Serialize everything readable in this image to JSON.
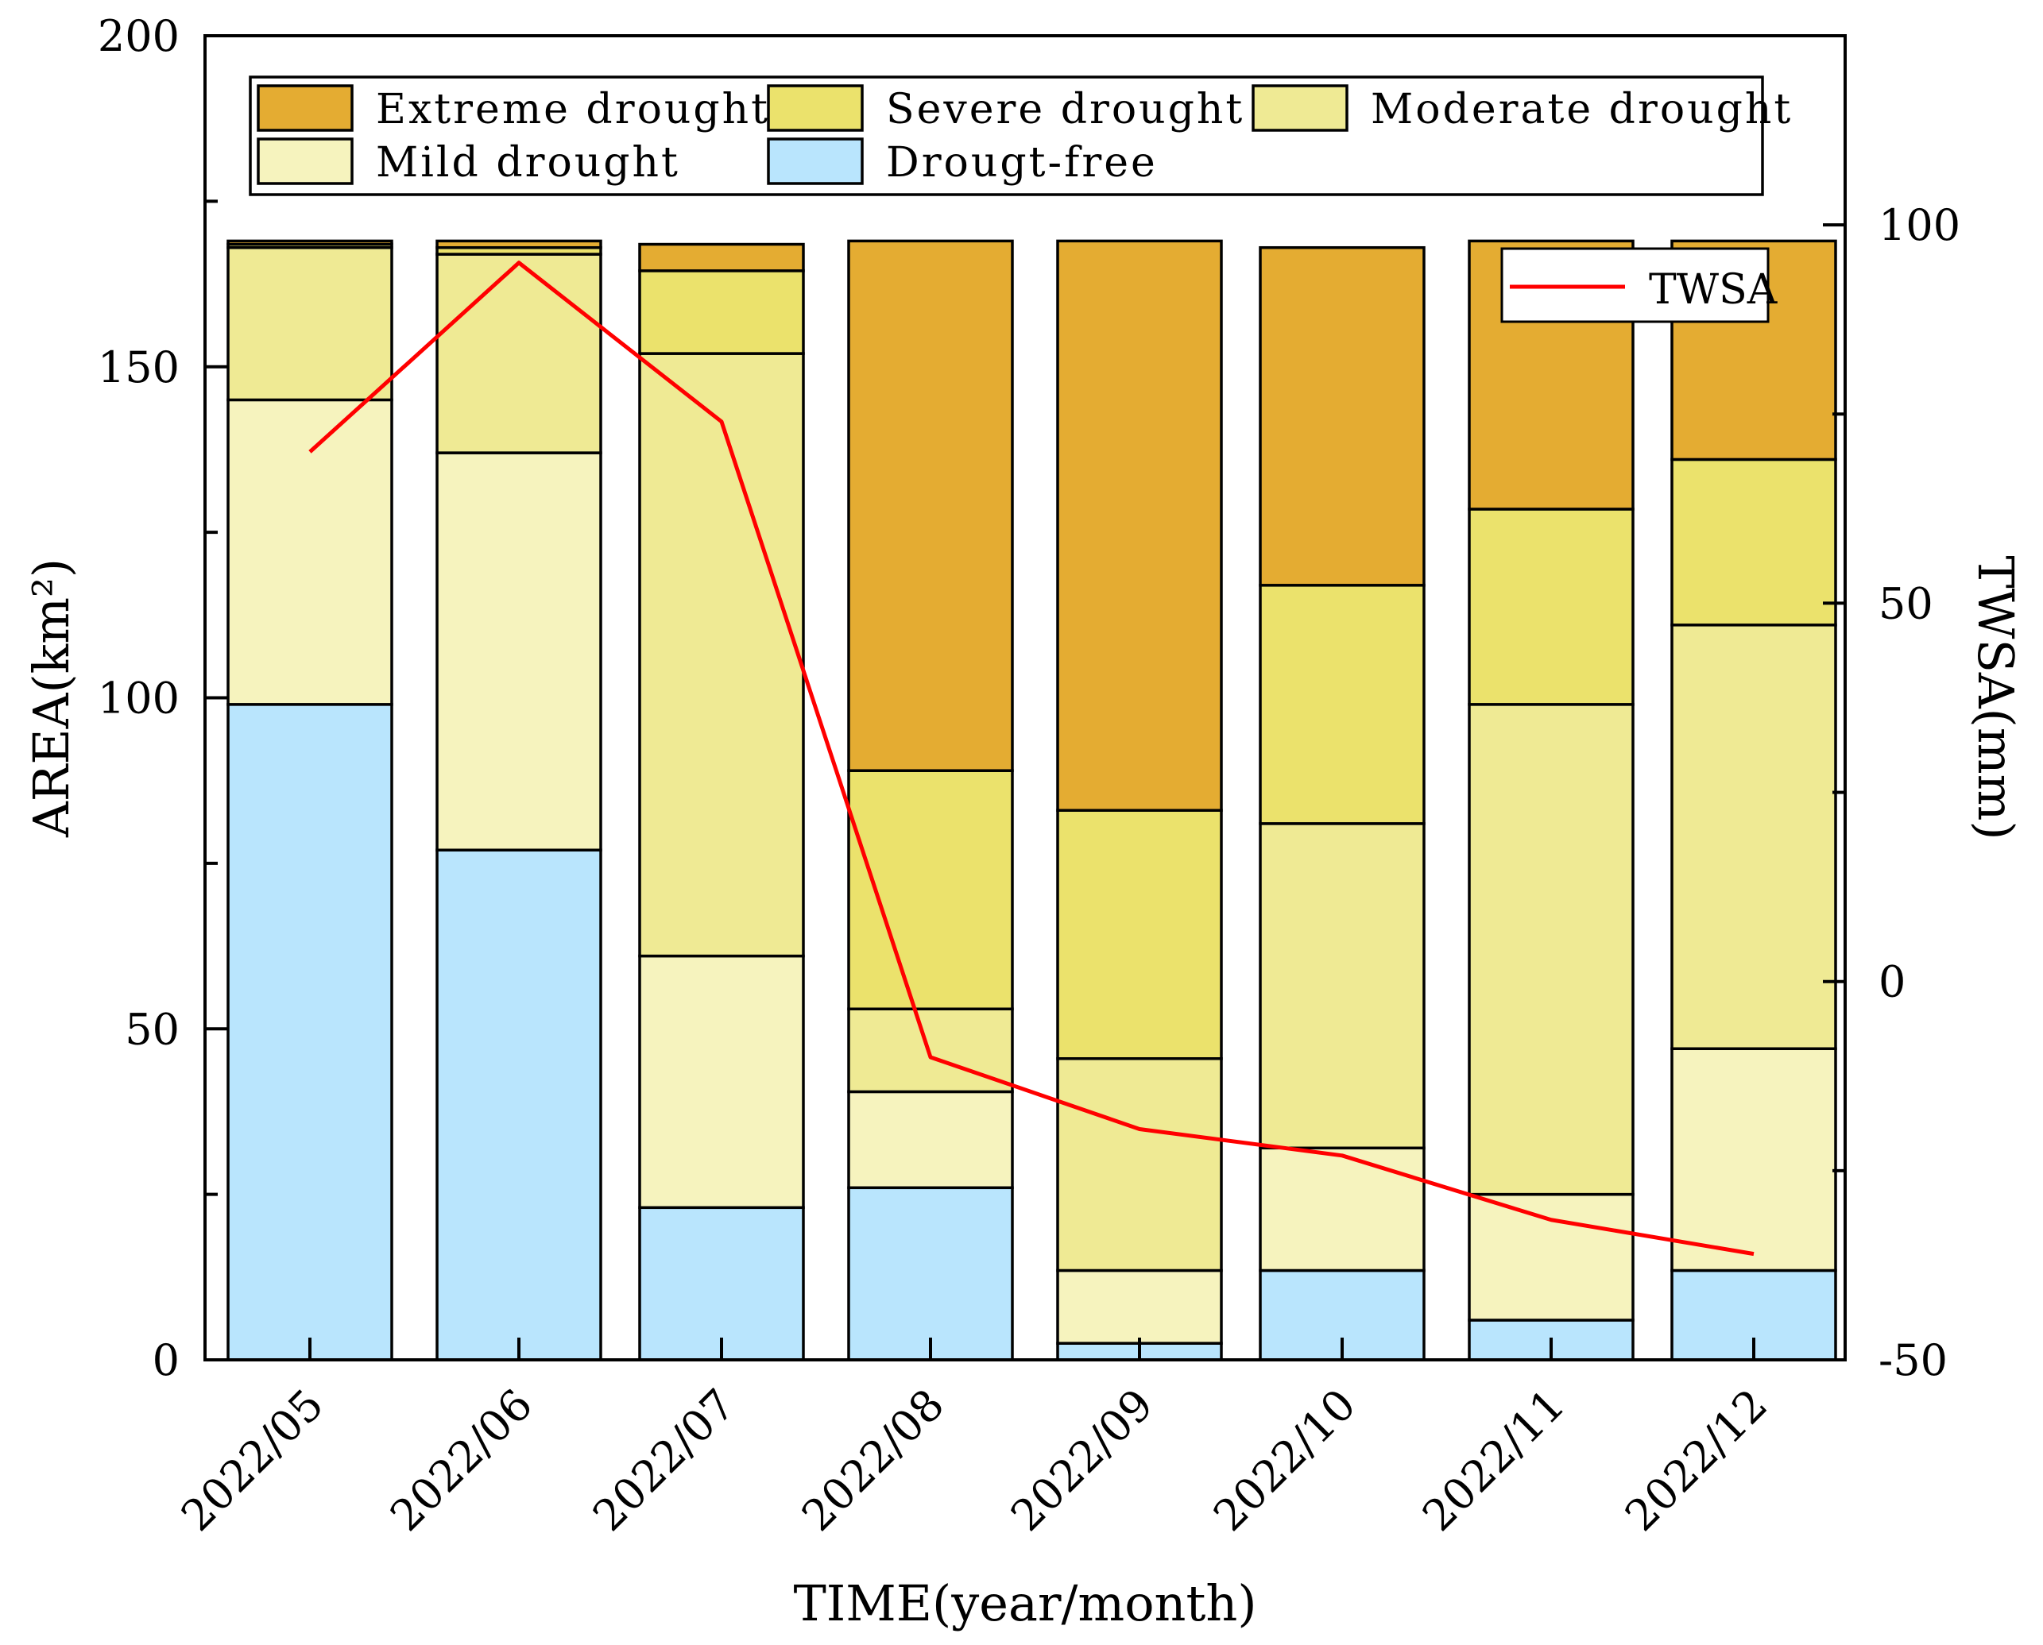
{
  "chart_data": {
    "type": "bar",
    "stacked": true,
    "categories": [
      "2022/05",
      "2022/06",
      "2022/07",
      "2022/08",
      "2022/09",
      "2022/10",
      "2022/11",
      "2022/12"
    ],
    "xlabel": "TIME(year/month)",
    "ylabel": "AREA(km²)",
    "y2label": "TWSA(mm)",
    "ylim": [
      0,
      200
    ],
    "y2lim": [
      -50,
      125
    ],
    "yticks": [
      "0",
      "50",
      "100",
      "150",
      "200"
    ],
    "y2ticks": [
      "-50",
      "0",
      "50",
      "100"
    ],
    "series": [
      {
        "name": "Drougt-free",
        "color": "#B9E5FD",
        "values": [
          99,
          77,
          23,
          26,
          2.5,
          13.5,
          6,
          13.5
        ]
      },
      {
        "name": "Mild drought",
        "color": "#F6F3BE",
        "values": [
          46,
          60,
          38,
          14.5,
          11,
          18.5,
          19,
          33.5
        ]
      },
      {
        "name": "Moderate drought",
        "color": "#EFEA94",
        "values": [
          23,
          30,
          91,
          12.5,
          32,
          49,
          74,
          64
        ]
      },
      {
        "name": "Severe drought",
        "color": "#EBE26C",
        "values": [
          0.5,
          1,
          12.5,
          36,
          37.5,
          36,
          29.5,
          25
        ]
      },
      {
        "name": "Extreme drought",
        "color": "#E4AC32",
        "values": [
          0.5,
          1,
          4,
          80,
          86,
          51,
          40.5,
          33
        ]
      }
    ],
    "line_series": {
      "name": "TWSA",
      "color": "#FF0000",
      "values": [
        70,
        95,
        74,
        -10,
        -19.5,
        -23,
        -31.5,
        -36
      ]
    },
    "legend": {
      "bar_placement": "top",
      "bar_entries": [
        "Extreme drought",
        "Severe drought",
        "Moderate drought",
        "Mild drought",
        "Drougt-free"
      ],
      "line_placement": "top-right",
      "line_entries": [
        "TWSA"
      ]
    }
  }
}
